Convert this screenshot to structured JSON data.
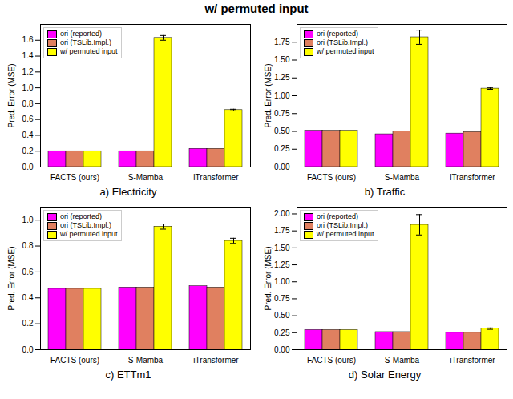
{
  "title": "w/ permuted input",
  "chart_data": [
    {
      "type": "bar",
      "title": "a) Electricity",
      "ylabel": "Pred. Error (MSE)",
      "categories": [
        "FACTS (ours)",
        "S-Mamba",
        "iTransformer"
      ],
      "series": [
        {
          "name": "ori (reported)",
          "color": "#FF00FF",
          "values": [
            0.2,
            0.2,
            0.23
          ]
        },
        {
          "name": "ori (TSLib.Impl.)",
          "color": "#E08060",
          "values": [
            0.2,
            0.2,
            0.23
          ]
        },
        {
          "name": "w/ permuted input",
          "color": "#FFFF00",
          "values": [
            0.2,
            1.63,
            0.72
          ],
          "errors": [
            0.0,
            0.03,
            0.01
          ]
        }
      ],
      "ylim": [
        0,
        1.8
      ],
      "yticks": [
        {
          "value": 0.0,
          "label": "0.0"
        },
        0.2,
        0.4,
        0.6,
        0.8,
        {
          "value": 1.0,
          "label": "1.0"
        },
        1.2,
        1.4,
        1.6
      ],
      "legend": "upper left"
    },
    {
      "type": "bar",
      "title": "b) Traffic",
      "ylabel": "Pred. Error (MSE)",
      "categories": [
        "FACTS (ours)",
        "S-Mamba",
        "iTransformer"
      ],
      "series": [
        {
          "name": "ori (reported)",
          "color": "#FF00FF",
          "values": [
            0.51,
            0.46,
            0.47
          ]
        },
        {
          "name": "ori (TSLib.Impl.)",
          "color": "#E08060",
          "values": [
            0.51,
            0.5,
            0.49
          ]
        },
        {
          "name": "w/ permuted input",
          "color": "#FFFF00",
          "values": [
            0.51,
            1.82,
            1.1
          ],
          "errors": [
            0.0,
            0.1,
            0.01
          ]
        }
      ],
      "ylim": [
        0,
        2.0
      ],
      "yticks": [
        {
          "value": 0.0,
          "label": "0.00"
        },
        0.25,
        {
          "value": 0.5,
          "label": "0.50"
        },
        0.75,
        {
          "value": 1.0,
          "label": "1.00"
        },
        1.25,
        {
          "value": 1.5,
          "label": "1.50"
        },
        1.75
      ],
      "legend": "upper left"
    },
    {
      "type": "bar",
      "title": "c) ETTm1",
      "ylabel": "Pred. Error (MSE)",
      "categories": [
        "FACTS (ours)",
        "S-Mamba",
        "iTransformer"
      ],
      "series": [
        {
          "name": "ori (reported)",
          "color": "#FF00FF",
          "values": [
            0.47,
            0.48,
            0.49
          ]
        },
        {
          "name": "ori (TSLib.Impl.)",
          "color": "#E08060",
          "values": [
            0.47,
            0.48,
            0.48
          ]
        },
        {
          "name": "w/ permuted input",
          "color": "#FFFF00",
          "values": [
            0.47,
            0.95,
            0.84
          ],
          "errors": [
            0.0,
            0.02,
            0.02
          ]
        }
      ],
      "ylim": [
        0,
        1.1
      ],
      "yticks": [
        {
          "value": 0.0,
          "label": "0.0"
        },
        0.2,
        0.4,
        0.6,
        0.8,
        {
          "value": 1.0,
          "label": "1.0"
        }
      ],
      "legend": "upper left"
    },
    {
      "type": "bar",
      "title": "d) Solar Energy",
      "ylabel": "Pred. Error (MSE)",
      "categories": [
        "FACTS (ours)",
        "S-Mamba",
        "iTransformer"
      ],
      "series": [
        {
          "name": "ori (reported)",
          "color": "#FF00FF",
          "values": [
            0.29,
            0.26,
            0.25
          ]
        },
        {
          "name": "ori (TSLib.Impl.)",
          "color": "#E08060",
          "values": [
            0.29,
            0.26,
            0.25
          ]
        },
        {
          "name": "w/ permuted input",
          "color": "#FFFF00",
          "values": [
            0.29,
            1.84,
            0.31
          ],
          "errors": [
            0.0,
            0.15,
            0.01
          ]
        }
      ],
      "ylim": [
        0,
        2.1
      ],
      "yticks": [
        {
          "value": 0.0,
          "label": "0.00"
        },
        0.25,
        {
          "value": 0.5,
          "label": "0.50"
        },
        0.75,
        {
          "value": 1.0,
          "label": "1.00"
        },
        1.25,
        {
          "value": 1.5,
          "label": "1.50"
        },
        1.75,
        {
          "value": 2.0,
          "label": "2.00"
        }
      ],
      "legend": "upper left"
    }
  ]
}
